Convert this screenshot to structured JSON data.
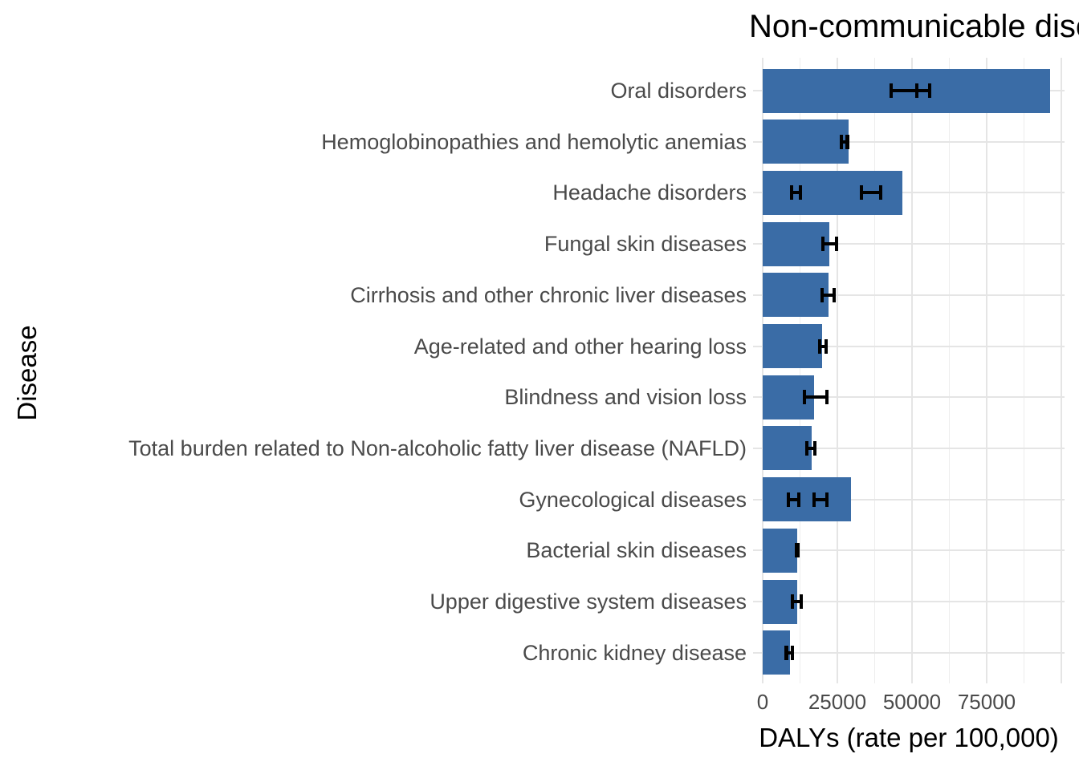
{
  "title": "Non-communicable diseases",
  "chart_data": {
    "type": "bar",
    "orientation": "horizontal",
    "title": "Non-communicable diseases",
    "xlabel": "DALYs (rate per 100,000)",
    "ylabel": "Disease",
    "xlim": [
      0,
      100000
    ],
    "grid": true,
    "legend": "none",
    "bar_color": "#3a6ca6",
    "error_bar_color": "#000000",
    "gridline_color": "#e5e5e5",
    "axis_text_color": "#4a4a4a",
    "x_ticks": [
      {
        "value": 0,
        "label": "0"
      },
      {
        "value": 25000,
        "label": "25000"
      },
      {
        "value": 50000,
        "label": "50000"
      },
      {
        "value": 75000,
        "label": "75000"
      }
    ],
    "x_gridlines_major": [
      0,
      25000,
      50000,
      75000,
      100000
    ],
    "x_gridlines_minor": [
      12500,
      37500,
      62500,
      87500
    ],
    "rows": [
      {
        "label": "Oral disorders",
        "value": 96200,
        "errors": [
          [
            43000,
            51600
          ],
          [
            51600,
            55900
          ]
        ]
      },
      {
        "label": "Hemoglobinopathies and hemolytic anemias",
        "value": 28700,
        "errors": [
          [
            26300,
            28300
          ]
        ]
      },
      {
        "label": "Headache disorders",
        "value": 46800,
        "errors": [
          [
            9700,
            12600
          ],
          [
            33100,
            39500
          ]
        ]
      },
      {
        "label": "Fungal skin diseases",
        "value": 22300,
        "errors": [
          [
            20200,
            24700
          ]
        ]
      },
      {
        "label": "Cirrhosis and other chronic liver diseases",
        "value": 22000,
        "errors": [
          [
            19900,
            23900
          ]
        ]
      },
      {
        "label": "Age-related and other hearing loss",
        "value": 19900,
        "errors": [
          [
            19100,
            21200
          ]
        ]
      },
      {
        "label": "Blindness and vision loss",
        "value": 17200,
        "errors": [
          [
            14000,
            21500
          ]
        ]
      },
      {
        "label": "Total burden related to Non-alcoholic fatty liver disease (NAFLD)",
        "value": 16400,
        "errors": [
          [
            14800,
            17500
          ]
        ]
      },
      {
        "label": "Gynecological diseases",
        "value": 29600,
        "errors": [
          [
            8600,
            12100
          ],
          [
            17200,
            21500
          ]
        ]
      },
      {
        "label": "Bacterial skin diseases",
        "value": 11600,
        "errors": [
          [
            11300,
            11800
          ]
        ]
      },
      {
        "label": "Upper digestive system diseases",
        "value": 11600,
        "errors": [
          [
            9900,
            12900
          ]
        ]
      },
      {
        "label": "Chronic kidney disease",
        "value": 9100,
        "errors": [
          [
            7900,
            9900
          ]
        ]
      }
    ]
  }
}
